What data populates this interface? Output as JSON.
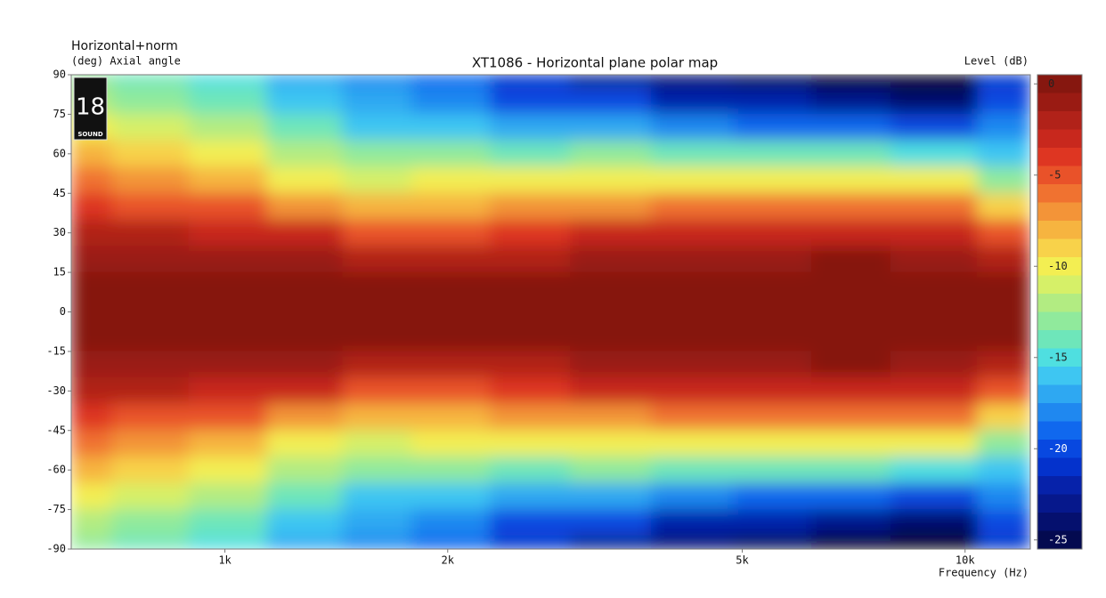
{
  "chart_data": {
    "type": "contour",
    "title": "XT1086 - Horizontal plane polar map",
    "subtitle": "Horizontal+norm",
    "y_label": "(deg)  Axial angle",
    "x_label": "Frequency  (Hz)",
    "colorbar_label": "Level  (dB)",
    "logo": {
      "number": "18",
      "text": "SOUND"
    },
    "x": [
      620,
      800,
      1000,
      1300,
      1600,
      2000,
      2600,
      3300,
      4300,
      5500,
      7000,
      9000,
      12000
    ],
    "y": [
      90,
      80,
      70,
      60,
      50,
      40,
      30,
      20,
      10,
      0,
      -10,
      -20,
      -30,
      -40,
      -50,
      -60,
      -70,
      -80,
      -90
    ],
    "z": [
      [
        -12.5,
        -14,
        -14.5,
        -16.5,
        -18,
        -19,
        -21,
        -22.5,
        -23.5,
        -24.5,
        -26,
        -27,
        -20.5
      ],
      [
        -11.5,
        -13,
        -13.5,
        -15.5,
        -17,
        -18,
        -19.5,
        -20,
        -21.5,
        -22,
        -23,
        -24,
        -19.5
      ],
      [
        -10,
        -11,
        -12,
        -14,
        -15.5,
        -16,
        -17,
        -17,
        -18,
        -18.5,
        -19,
        -19.5,
        -18
      ],
      [
        -8,
        -9,
        -10,
        -12,
        -13,
        -13,
        -13.5,
        -13,
        -13.5,
        -14,
        -14,
        -14.5,
        -16
      ],
      [
        -6,
        -6.8,
        -7.5,
        -9.5,
        -10.5,
        -10,
        -10,
        -9.5,
        -9.5,
        -9.5,
        -9.5,
        -10,
        -13
      ],
      [
        -4,
        -4.5,
        -5,
        -6.5,
        -8,
        -7.5,
        -7,
        -6.5,
        -6.3,
        -6.2,
        -6,
        -6.3,
        -9
      ],
      [
        -2,
        -2.2,
        -2.5,
        -3.3,
        -4.5,
        -4.5,
        -4,
        -3.2,
        -3,
        -3,
        -2.8,
        -3,
        -5
      ],
      [
        -0.5,
        -0.5,
        -0.6,
        -1,
        -1.8,
        -2,
        -1.5,
        -0.8,
        -0.7,
        -0.6,
        -0.4,
        -0.7,
        -2
      ],
      [
        0,
        0,
        0,
        -0.2,
        -0.3,
        -0.4,
        -0.2,
        0,
        0,
        0,
        0,
        0,
        -0.3
      ],
      [
        0,
        0,
        0,
        0,
        0,
        0,
        0,
        0,
        0,
        0,
        0,
        0,
        0
      ],
      [
        0,
        0,
        0,
        -0.2,
        -0.3,
        -0.4,
        -0.2,
        0,
        0,
        0,
        0,
        0,
        -0.3
      ],
      [
        -0.5,
        -0.5,
        -0.6,
        -1,
        -1.8,
        -2,
        -1.5,
        -0.8,
        -0.7,
        -0.6,
        -0.4,
        -0.7,
        -2
      ],
      [
        -2,
        -2.2,
        -2.5,
        -3.3,
        -4.5,
        -4.5,
        -4,
        -3.2,
        -3,
        -3,
        -2.8,
        -3,
        -5
      ],
      [
        -4,
        -4.5,
        -5,
        -6.5,
        -8,
        -7.5,
        -7,
        -6.5,
        -6.3,
        -6.2,
        -6,
        -6.3,
        -9
      ],
      [
        -6,
        -6.8,
        -7.5,
        -9.5,
        -10.5,
        -10,
        -10,
        -9.5,
        -9.5,
        -9.5,
        -9.5,
        -10,
        -13
      ],
      [
        -8,
        -9,
        -10,
        -12,
        -13,
        -13,
        -13.5,
        -13,
        -13.5,
        -14,
        -14,
        -14.5,
        -16
      ],
      [
        -10,
        -11,
        -12,
        -14,
        -15.5,
        -16,
        -17,
        -17,
        -18,
        -18.5,
        -19,
        -19.5,
        -18
      ],
      [
        -11.5,
        -13,
        -13.5,
        -15.5,
        -17,
        -18,
        -19.5,
        -20,
        -21.5,
        -22,
        -23,
        -24,
        -19.5
      ],
      [
        -12.5,
        -14,
        -14.5,
        -16.5,
        -18,
        -19,
        -21,
        -22.5,
        -23.5,
        -24.5,
        -26,
        -27,
        -20.5
      ]
    ],
    "xlim": [
      620,
      12250
    ],
    "x_log": true,
    "xticks": [
      {
        "value": 1000,
        "label": "1k"
      },
      {
        "value": 2000,
        "label": "2k"
      },
      {
        "value": 5000,
        "label": "5k"
      },
      {
        "value": 10000,
        "label": "10k"
      }
    ],
    "ylim": [
      -90,
      90
    ],
    "yticks": [
      90,
      75,
      60,
      45,
      30,
      15,
      0,
      -15,
      -30,
      -45,
      -60,
      -75,
      -90
    ],
    "zlim": [
      -25.5,
      0.5
    ],
    "zticks": [
      0,
      -5,
      -10,
      -15,
      -20,
      -25
    ],
    "colors": [
      "#86170f",
      "#9a1b13",
      "#b12219",
      "#c8281d",
      "#de3622",
      "#e95229",
      "#f07230",
      "#f39438",
      "#f6b440",
      "#f8d24a",
      "#f3ee52",
      "#d6f068",
      "#b2ec82",
      "#90ea9c",
      "#6ee6ba",
      "#4fdfe0",
      "#3ec6f2",
      "#2ea8f2",
      "#1f88f0",
      "#1068ee",
      "#0848e0",
      "#0432cc",
      "#0622aa",
      "#06188c",
      "#05106e",
      "#040a50"
    ],
    "below_color": "#000000"
  }
}
